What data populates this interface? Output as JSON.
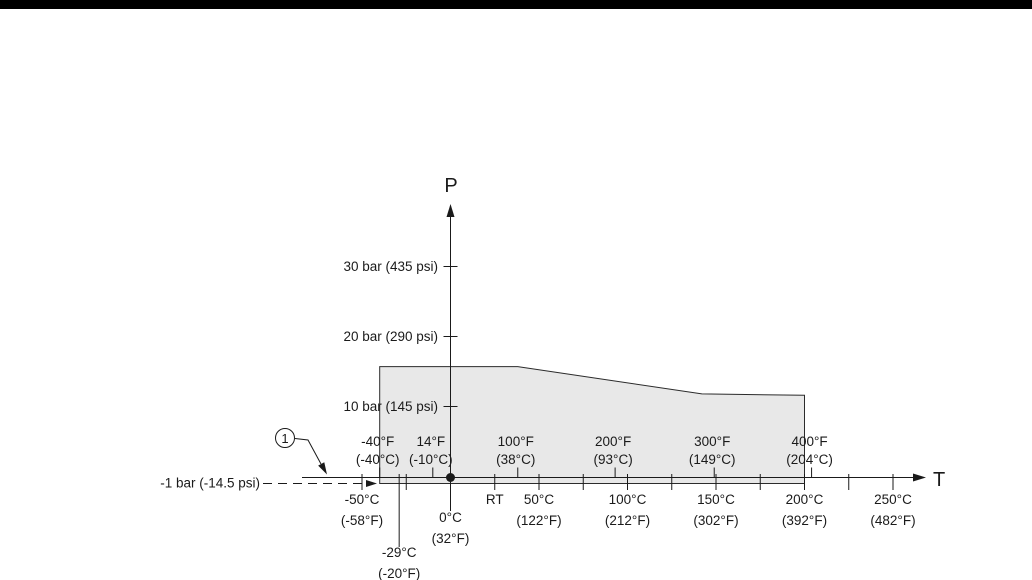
{
  "page": {
    "bg_color": "#ffffff",
    "top_rule_color": "#000000"
  },
  "chart_data": {
    "type": "area",
    "title": "",
    "x_axis": {
      "label": "T",
      "units": [
        "°C",
        "°F"
      ]
    },
    "y_axis": {
      "label": "P",
      "units": [
        "bar",
        "psi"
      ]
    },
    "colors": {
      "line": "#1a1a1a",
      "envelope_fill": "#e8e8e8",
      "envelope_stroke": "#2b2b2b"
    },
    "pressure_ticks": [
      {
        "bar": 30,
        "label": "30 bar (435 psi)"
      },
      {
        "bar": 20,
        "label": "20 bar (290 psi)"
      },
      {
        "bar": 10,
        "label": "10 bar (145 psi)"
      }
    ],
    "vacuum_line": {
      "bar": -1,
      "label": "-1 bar (-14.5 psi)",
      "style": "dashed"
    },
    "temp_ticks_top_f": [
      {
        "t_c": -40,
        "line1": "-40°F",
        "line2": "(-40°C)"
      },
      {
        "t_c": -10,
        "line1": "14°F",
        "line2": "(-10°C)"
      },
      {
        "t_c": 38,
        "line1": "100°F",
        "line2": "(38°C)"
      },
      {
        "t_c": 93,
        "line1": "200°F",
        "line2": "(93°C)"
      },
      {
        "t_c": 149,
        "line1": "300°F",
        "line2": "(149°C)"
      },
      {
        "t_c": 204,
        "line1": "400°F",
        "line2": "(204°C)"
      }
    ],
    "temp_ticks_bottom_c": [
      {
        "t_c": -50,
        "line1": "-50°C",
        "line2": "(-58°F)",
        "row": 0
      },
      {
        "t_c": -29,
        "line1": "-29°C",
        "line2": "(-20°F)",
        "row": 2
      },
      {
        "t_c": 0,
        "line1": "0°C",
        "line2": "(32°F)",
        "row": 1
      },
      {
        "t_c": 25,
        "line1": "RT",
        "line2": "",
        "row": 0
      },
      {
        "t_c": 50,
        "line1": "50°C",
        "line2": "(122°F)",
        "row": 0
      },
      {
        "t_c": 100,
        "line1": "100°C",
        "line2": "(212°F)",
        "row": 0
      },
      {
        "t_c": 150,
        "line1": "150°C",
        "line2": "(302°F)",
        "row": 0
      },
      {
        "t_c": 200,
        "line1": "200°C",
        "line2": "(392°F)",
        "row": 0
      },
      {
        "t_c": 250,
        "line1": "250°C",
        "line2": "(482°F)",
        "row": 0
      }
    ],
    "minor_temp_ticks_c": [
      -25,
      75,
      125,
      175,
      225
    ],
    "envelope_t_p_bar": [
      [
        -40,
        -1
      ],
      [
        -40,
        15.7
      ],
      [
        38,
        15.7
      ],
      [
        142,
        11.8
      ],
      [
        200,
        11.6
      ],
      [
        200,
        -1
      ]
    ],
    "origin_marker": {
      "t_c": 0,
      "p_bar": 0
    },
    "callout": {
      "number": "1",
      "points_to": "-1 bar (-14.5 psi) dashed vacuum limit line"
    }
  }
}
